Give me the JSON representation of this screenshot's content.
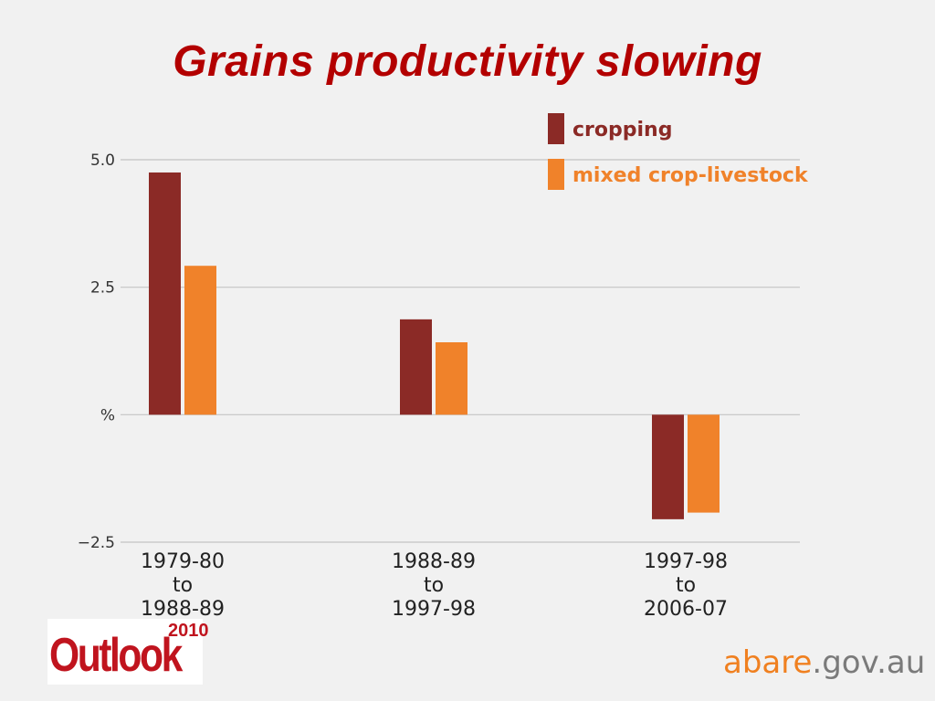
{
  "title": "Grains productivity slowing",
  "chart_data": {
    "type": "bar",
    "categories": [
      [
        "1979-80",
        "to",
        "1988-89"
      ],
      [
        "1988-89",
        "to",
        "1997-98"
      ],
      [
        "1997-98",
        "to",
        "2006-07"
      ]
    ],
    "series": [
      {
        "name": "cropping",
        "color": "#8b2a26",
        "values": [
          4.75,
          1.87,
          -2.05
        ]
      },
      {
        "name": "mixed crop-livestock",
        "color": "#f0822a",
        "values": [
          2.92,
          1.42,
          -1.92
        ]
      }
    ],
    "yticks": [
      {
        "value": 5.0,
        "label": "5.0"
      },
      {
        "value": 2.5,
        "label": "2.5"
      },
      {
        "value": 0,
        "label": "%"
      },
      {
        "value": -2.5,
        "label": "−2.5"
      }
    ],
    "ylim": [
      -2.5,
      5.0
    ],
    "grid": true,
    "legend_position": "top-right"
  },
  "footer": {
    "logo_text": "Outlook",
    "logo_year": "2010",
    "site_main": "abare",
    "site_suffix": ".gov.au"
  }
}
